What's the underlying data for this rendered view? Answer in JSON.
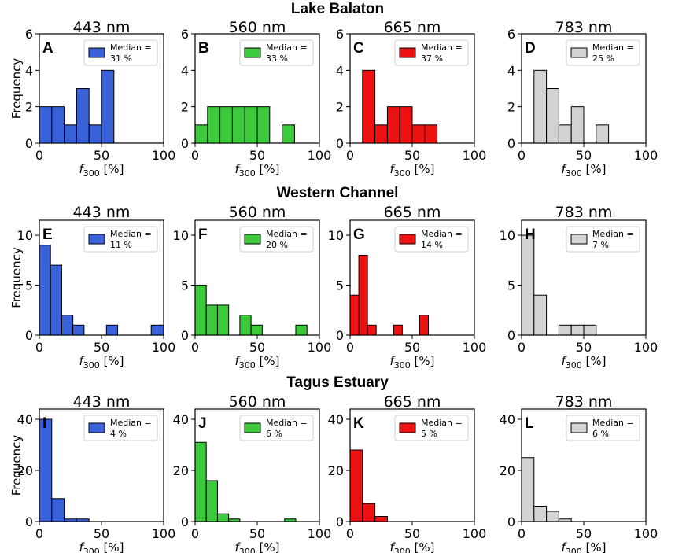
{
  "sections": [
    {
      "title": "Lake Balaton",
      "ylim": [
        0,
        6
      ],
      "yticks": [
        0,
        2,
        4,
        6
      ],
      "panels": [
        {
          "letter": "A",
          "wavelength": "443 nm",
          "color": "#3a62d8",
          "bins": [
            [
              0,
              10,
              2
            ],
            [
              10,
              20,
              2
            ],
            [
              20,
              30,
              1
            ],
            [
              30,
              40,
              3
            ],
            [
              40,
              50,
              1
            ],
            [
              50,
              60,
              4
            ]
          ],
          "legend": [
            "Median =",
            "31 %"
          ]
        },
        {
          "letter": "B",
          "wavelength": "560 nm",
          "color": "#3cc93c",
          "bins": [
            [
              0,
              10,
              1
            ],
            [
              10,
              20,
              2
            ],
            [
              20,
              30,
              2
            ],
            [
              30,
              40,
              2
            ],
            [
              40,
              50,
              2
            ],
            [
              50,
              60,
              2
            ],
            [
              70,
              80,
              1
            ]
          ],
          "legend": [
            "Median =",
            "33 %"
          ]
        },
        {
          "letter": "C",
          "wavelength": "665 nm",
          "color": "#ee1111",
          "bins": [
            [
              10,
              20,
              4
            ],
            [
              20,
              30,
              1
            ],
            [
              30,
              40,
              2
            ],
            [
              40,
              50,
              2
            ],
            [
              50,
              60,
              1
            ],
            [
              60,
              70,
              1
            ]
          ],
          "legend": [
            "Median =",
            "37 %"
          ]
        },
        {
          "letter": "D",
          "wavelength": "783 nm",
          "color": "#d3d3d3",
          "bins": [
            [
              10,
              20,
              4
            ],
            [
              20,
              30,
              3
            ],
            [
              30,
              40,
              1
            ],
            [
              40,
              50,
              2
            ],
            [
              60,
              70,
              1
            ]
          ],
          "legend": [
            "Median =",
            "25 %"
          ]
        }
      ]
    },
    {
      "title": "Western Channel",
      "ylim": [
        0,
        11.5
      ],
      "yticks": [
        0,
        5,
        10
      ],
      "panels": [
        {
          "letter": "E",
          "wavelength": "443 nm",
          "color": "#3a62d8",
          "bins": [
            [
              0,
              9,
              9
            ],
            [
              9,
              18,
              7
            ],
            [
              18,
              27,
              2
            ],
            [
              27,
              36,
              1
            ],
            [
              54,
              63,
              1
            ],
            [
              90,
              100,
              1
            ]
          ],
          "legend": [
            "Median =",
            "11 %"
          ]
        },
        {
          "letter": "F",
          "wavelength": "560 nm",
          "color": "#3cc93c",
          "bins": [
            [
              0,
              9,
              5
            ],
            [
              9,
              18,
              3
            ],
            [
              18,
              27,
              3
            ],
            [
              36,
              45,
              2
            ],
            [
              45,
              54,
              1
            ],
            [
              81,
              90,
              1
            ]
          ],
          "legend": [
            "Median =",
            "20 %"
          ]
        },
        {
          "letter": "G",
          "wavelength": "665 nm",
          "color": "#ee1111",
          "bins": [
            [
              0,
              7,
              4
            ],
            [
              7,
              14,
              8
            ],
            [
              14,
              21,
              1
            ],
            [
              35,
              42,
              1
            ],
            [
              56,
              63,
              2
            ]
          ],
          "legend": [
            "Median =",
            "14 %"
          ]
        },
        {
          "letter": "H",
          "wavelength": "783 nm",
          "color": "#d3d3d3",
          "bins": [
            [
              0,
              10,
              10
            ],
            [
              10,
              20,
              4
            ],
            [
              30,
              40,
              1
            ],
            [
              40,
              50,
              1
            ],
            [
              50,
              60,
              1
            ]
          ],
          "legend": [
            "Median =",
            "7 %"
          ]
        }
      ]
    },
    {
      "title": "Tagus Estuary",
      "ylim": [
        0,
        44
      ],
      "yticks": [
        0,
        20,
        40
      ],
      "panels": [
        {
          "letter": "I",
          "wavelength": "443 nm",
          "color": "#3a62d8",
          "bins": [
            [
              0,
              10,
              40
            ],
            [
              10,
              20,
              9
            ],
            [
              20,
              30,
              1
            ],
            [
              30,
              40,
              1
            ]
          ],
          "legend": [
            "Median =",
            "4 %"
          ]
        },
        {
          "letter": "J",
          "wavelength": "560 nm",
          "color": "#3cc93c",
          "bins": [
            [
              0,
              9,
              31
            ],
            [
              9,
              18,
              16
            ],
            [
              18,
              27,
              3
            ],
            [
              27,
              36,
              1
            ],
            [
              72,
              81,
              1
            ]
          ],
          "legend": [
            "Median =",
            "6 %"
          ]
        },
        {
          "letter": "K",
          "wavelength": "665 nm",
          "color": "#ee1111",
          "bins": [
            [
              0,
              10,
              28
            ],
            [
              10,
              20,
              7
            ],
            [
              20,
              30,
              2
            ]
          ],
          "legend": [
            "Median =",
            "5 %"
          ]
        },
        {
          "letter": "L",
          "wavelength": "783 nm",
          "color": "#d3d3d3",
          "bins": [
            [
              0,
              10,
              25
            ],
            [
              10,
              20,
              6
            ],
            [
              20,
              30,
              4
            ],
            [
              30,
              40,
              1
            ]
          ],
          "legend": [
            "Median =",
            "6 %"
          ]
        }
      ]
    }
  ],
  "xlabel": {
    "main": "f",
    "sub": "300",
    "unit": " [%]"
  },
  "ylabel": "Frequency",
  "xticks": [
    0,
    50,
    100
  ],
  "xlim": [
    0,
    100
  ],
  "chart_data": [
    {
      "type": "bar",
      "title": "443 nm",
      "section": "Lake Balaton",
      "panel": "A",
      "legend": "Median = 31 %",
      "xlabel": "f300 [%]",
      "ylabel": "Frequency",
      "xlim": [
        0,
        100
      ],
      "ylim": [
        0,
        6
      ],
      "x": [
        5,
        15,
        25,
        35,
        45,
        55
      ],
      "values": [
        2,
        2,
        1,
        3,
        1,
        4
      ]
    },
    {
      "type": "bar",
      "title": "560 nm",
      "section": "Lake Balaton",
      "panel": "B",
      "legend": "Median = 33 %",
      "xlabel": "f300 [%]",
      "xlim": [
        0,
        100
      ],
      "ylim": [
        0,
        6
      ],
      "x": [
        5,
        15,
        25,
        35,
        45,
        55,
        75
      ],
      "values": [
        1,
        2,
        2,
        2,
        2,
        2,
        1
      ]
    },
    {
      "type": "bar",
      "title": "665 nm",
      "section": "Lake Balaton",
      "panel": "C",
      "legend": "Median = 37 %",
      "xlabel": "f300 [%]",
      "xlim": [
        0,
        100
      ],
      "ylim": [
        0,
        6
      ],
      "x": [
        15,
        25,
        35,
        45,
        55,
        65
      ],
      "values": [
        4,
        1,
        2,
        2,
        1,
        1
      ]
    },
    {
      "type": "bar",
      "title": "783 nm",
      "section": "Lake Balaton",
      "panel": "D",
      "legend": "Median = 25 %",
      "xlabel": "f300 [%]",
      "xlim": [
        0,
        100
      ],
      "ylim": [
        0,
        6
      ],
      "x": [
        15,
        25,
        35,
        45,
        65
      ],
      "values": [
        4,
        3,
        1,
        2,
        1
      ]
    },
    {
      "type": "bar",
      "title": "443 nm",
      "section": "Western Channel",
      "panel": "E",
      "legend": "Median = 11 %",
      "xlabel": "f300 [%]",
      "ylabel": "Frequency",
      "xlim": [
        0,
        100
      ],
      "ylim": [
        0,
        11.5
      ],
      "x": [
        4.5,
        13.5,
        22.5,
        31.5,
        58.5,
        95
      ],
      "values": [
        9,
        7,
        2,
        1,
        1,
        1
      ]
    },
    {
      "type": "bar",
      "title": "560 nm",
      "section": "Western Channel",
      "panel": "F",
      "legend": "Median = 20 %",
      "xlabel": "f300 [%]",
      "xlim": [
        0,
        100
      ],
      "ylim": [
        0,
        11.5
      ],
      "x": [
        4.5,
        13.5,
        22.5,
        40.5,
        49.5,
        85.5
      ],
      "values": [
        5,
        3,
        3,
        2,
        1,
        1
      ]
    },
    {
      "type": "bar",
      "title": "665 nm",
      "section": "Western Channel",
      "panel": "G",
      "legend": "Median = 14 %",
      "xlabel": "f300 [%]",
      "xlim": [
        0,
        100
      ],
      "ylim": [
        0,
        11.5
      ],
      "x": [
        3.5,
        10.5,
        17.5,
        38.5,
        59.5
      ],
      "values": [
        4,
        8,
        1,
        1,
        2
      ]
    },
    {
      "type": "bar",
      "title": "783 nm",
      "section": "Western Channel",
      "panel": "H",
      "legend": "Median = 7 %",
      "xlabel": "f300 [%]",
      "xlim": [
        0,
        100
      ],
      "ylim": [
        0,
        11.5
      ],
      "x": [
        5,
        15,
        35,
        45,
        55
      ],
      "values": [
        10,
        4,
        1,
        1,
        1
      ]
    },
    {
      "type": "bar",
      "title": "443 nm",
      "section": "Tagus Estuary",
      "panel": "I",
      "legend": "Median = 4 %",
      "xlabel": "f300 [%]",
      "ylabel": "Frequency",
      "xlim": [
        0,
        100
      ],
      "ylim": [
        0,
        44
      ],
      "x": [
        5,
        15,
        25,
        35
      ],
      "values": [
        40,
        9,
        1,
        1
      ]
    },
    {
      "type": "bar",
      "title": "560 nm",
      "section": "Tagus Estuary",
      "panel": "J",
      "legend": "Median = 6 %",
      "xlabel": "f300 [%]",
      "xlim": [
        0,
        100
      ],
      "ylim": [
        0,
        44
      ],
      "x": [
        4.5,
        13.5,
        22.5,
        31.5,
        76.5
      ],
      "values": [
        31,
        16,
        3,
        1,
        1
      ]
    },
    {
      "type": "bar",
      "title": "665 nm",
      "section": "Tagus Estuary",
      "panel": "K",
      "legend": "Median = 5 %",
      "xlabel": "f300 [%]",
      "xlim": [
        0,
        100
      ],
      "ylim": [
        0,
        44
      ],
      "x": [
        5,
        15,
        25
      ],
      "values": [
        28,
        7,
        2
      ]
    },
    {
      "type": "bar",
      "title": "783 nm",
      "section": "Tagus Estuary",
      "panel": "L",
      "legend": "Median = 6 %",
      "xlabel": "f300 [%]",
      "xlim": [
        0,
        100
      ],
      "ylim": [
        0,
        44
      ],
      "x": [
        5,
        15,
        25,
        35
      ],
      "values": [
        25,
        6,
        4,
        1
      ]
    }
  ]
}
